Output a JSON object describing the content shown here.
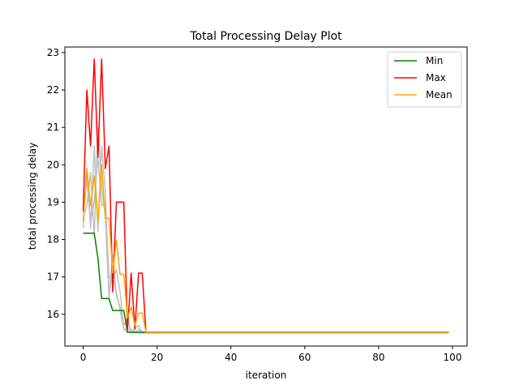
{
  "chart_data": {
    "type": "line",
    "title": "Total Processing Delay Plot",
    "xlabel": "iteration",
    "ylabel": "total processing delay",
    "xlim": [
      -4.95,
      103.95
    ],
    "ylim": [
      15.15,
      23.15
    ],
    "xticks": [
      0,
      20,
      40,
      60,
      80,
      100
    ],
    "yticks": [
      16,
      17,
      18,
      19,
      20,
      21,
      22,
      23
    ],
    "grid": false,
    "legend": "top-right",
    "samples": {
      "color": "#c0c0c0",
      "series": [
        {
          "x": [
            0,
            1,
            2,
            3,
            4,
            5,
            6,
            7,
            8,
            9,
            10,
            11,
            12,
            13,
            14,
            15,
            16,
            17,
            18,
            99
          ],
          "y": [
            18.3,
            19.9,
            18.3,
            20.5,
            18.2,
            20.5,
            19.3,
            16.6,
            17.0,
            16.6,
            16.1,
            15.6,
            15.5,
            15.6,
            15.5,
            15.6,
            15.5,
            15.5,
            15.5,
            15.5
          ]
        },
        {
          "x": [
            0,
            1,
            2,
            3,
            4,
            5,
            6,
            7,
            8,
            9,
            10,
            11,
            12,
            13,
            14,
            15,
            16,
            17,
            18,
            99
          ],
          "y": [
            18.6,
            18.9,
            19.8,
            18.1,
            21.0,
            19.4,
            18.6,
            16.4,
            17.6,
            16.5,
            16.2,
            15.7,
            15.9,
            15.5,
            15.6,
            15.7,
            15.5,
            15.5,
            15.5,
            15.5
          ]
        },
        {
          "x": [
            0,
            1,
            2,
            3,
            4,
            5,
            6,
            7,
            8,
            9,
            10,
            11,
            12,
            13,
            14,
            15,
            16,
            17,
            18,
            99
          ],
          "y": [
            18.8,
            19.6,
            18.5,
            19.0,
            20.2,
            18.9,
            19.0,
            17.0,
            16.9,
            17.2,
            16.6,
            15.6,
            15.6,
            15.6,
            15.5,
            15.5,
            15.5,
            15.5,
            15.5,
            15.5
          ]
        }
      ]
    },
    "series": [
      {
        "name": "Min",
        "color": "#008000",
        "x": [
          0,
          1,
          2,
          3,
          4,
          5,
          6,
          7,
          8,
          9,
          10,
          11,
          12,
          13,
          14,
          15,
          16,
          17,
          18,
          99
        ],
        "y": [
          18.17,
          18.17,
          18.17,
          18.17,
          17.5,
          16.42,
          16.42,
          16.42,
          16.1,
          16.1,
          16.1,
          16.1,
          15.52,
          15.52,
          15.52,
          15.52,
          15.52,
          15.52,
          15.52,
          15.52
        ]
      },
      {
        "name": "Max",
        "color": "#ff0000",
        "x": [
          0,
          1,
          2,
          3,
          4,
          5,
          6,
          7,
          8,
          9,
          10,
          11,
          12,
          13,
          14,
          15,
          16,
          17,
          18,
          99
        ],
        "y": [
          18.75,
          22.0,
          20.5,
          22.83,
          20.2,
          22.83,
          19.9,
          20.5,
          16.6,
          19.0,
          19.0,
          19.0,
          15.6,
          17.1,
          15.6,
          17.1,
          17.1,
          15.52,
          15.52,
          15.52
        ]
      },
      {
        "name": "Mean",
        "color": "#ffa500",
        "x": [
          0,
          1,
          2,
          3,
          4,
          5,
          6,
          7,
          8,
          9,
          10,
          11,
          12,
          13,
          14,
          15,
          16,
          17,
          18,
          99
        ],
        "y": [
          18.48,
          19.9,
          18.9,
          19.7,
          18.5,
          20.0,
          18.57,
          18.57,
          17.1,
          17.98,
          17.07,
          17.07,
          15.9,
          16.2,
          15.7,
          16.03,
          16.03,
          15.52,
          15.52,
          15.52
        ]
      }
    ]
  }
}
